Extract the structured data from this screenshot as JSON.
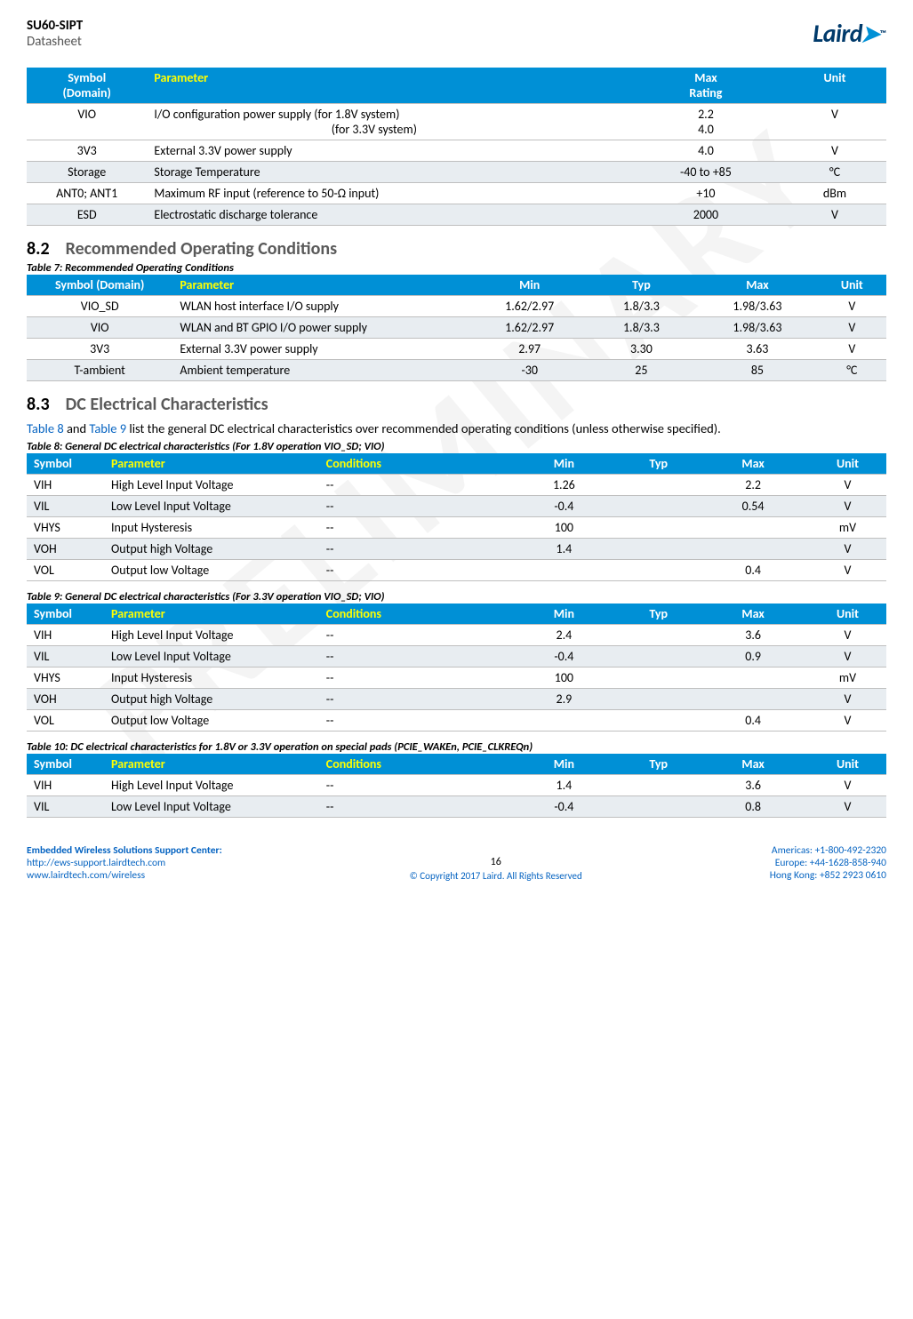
{
  "header": {
    "title": "SU60-SIPT",
    "subtitle": "Datasheet",
    "logo_text": "Laird"
  },
  "watermark": "PRELIMINARY",
  "table6": {
    "headers": [
      "Symbol (Domain)",
      "Parameter",
      "Max Rating",
      "Unit"
    ],
    "col_widths": [
      "14%",
      "56%",
      "18%",
      "12%"
    ],
    "rows": [
      {
        "cells": [
          "VIO",
          "I/O configuration power supply (for 1.8V system)\n                                                               (for 3.3V system)",
          "2.2\n4.0",
          "V"
        ],
        "alt": false
      },
      {
        "cells": [
          "3V3",
          "External 3.3V power supply",
          "4.0",
          "V"
        ],
        "alt": false
      },
      {
        "cells": [
          "Storage",
          "Storage Temperature",
          "-40 to +85",
          "°C"
        ],
        "alt": true
      },
      {
        "cells": [
          "ANT0; ANT1",
          "Maximum RF input (reference to 50-Ω input)",
          "+10",
          "dBm"
        ],
        "alt": false
      },
      {
        "cells": [
          "ESD",
          "Electrostatic discharge tolerance",
          "2000",
          "V"
        ],
        "alt": true
      }
    ]
  },
  "section82_num": "8.2",
  "section82_title": "Recommended Operating Conditions",
  "table7_caption": "Table 7: Recommended Operating Conditions",
  "table7": {
    "headers": [
      "Symbol (Domain)",
      "Parameter",
      "Min",
      "Typ",
      "Max",
      "Unit"
    ],
    "col_widths": [
      "17%",
      "35%",
      "13%",
      "13%",
      "14%",
      "8%"
    ],
    "rows": [
      {
        "cells": [
          "VIO_SD",
          "WLAN host interface I/O supply",
          "1.62/2.97",
          "1.8/3.3",
          "1.98/3.63",
          "V"
        ],
        "alt": false
      },
      {
        "cells": [
          "VIO",
          "WLAN and BT GPIO I/O power supply",
          "1.62/2.97",
          "1.8/3.3",
          "1.98/3.63",
          "V"
        ],
        "alt": true
      },
      {
        "cells": [
          "3V3",
          "External 3.3V power supply",
          "2.97",
          "3.30",
          "3.63",
          "V"
        ],
        "alt": false
      },
      {
        "cells": [
          "T-ambient",
          "Ambient temperature",
          "-30",
          "25",
          "85",
          "°C"
        ],
        "alt": true
      }
    ]
  },
  "section83_num": "8.3",
  "section83_title": "DC Electrical Characteristics",
  "section83_body_pre": "",
  "section83_link1": "Table 8",
  "section83_body_mid": " and ",
  "section83_link2": "Table 9",
  "section83_body_post": " list the general DC electrical characteristics over recommended operating conditions (unless otherwise specified).",
  "table8_caption": "Table 8: General DC electrical characteristics (For 1.8V operation VIO_SD; VIO)",
  "table_dc": {
    "headers": [
      "Symbol",
      "Parameter",
      "Conditions",
      "Min",
      "Typ",
      "Max",
      "Unit"
    ],
    "col_widths": [
      "9%",
      "25%",
      "22%",
      "13%",
      "9%",
      "13%",
      "9%"
    ]
  },
  "table8_rows": [
    {
      "cells": [
        "VIH",
        "High Level Input Voltage",
        "--",
        "1.26",
        "",
        "2.2",
        "V"
      ],
      "alt": false
    },
    {
      "cells": [
        "VIL",
        "Low Level Input Voltage",
        "--",
        "-0.4",
        "",
        "0.54",
        "V"
      ],
      "alt": true
    },
    {
      "cells": [
        "VHYS",
        "Input Hysteresis",
        "--",
        "100",
        "",
        "",
        "mV"
      ],
      "alt": false
    },
    {
      "cells": [
        "VOH",
        "Output high Voltage",
        "--",
        "1.4",
        "",
        "",
        "V"
      ],
      "alt": true
    },
    {
      "cells": [
        "VOL",
        "Output low Voltage",
        "--",
        "",
        "",
        "0.4",
        "V"
      ],
      "alt": false
    }
  ],
  "table9_caption": "Table 9: General DC electrical characteristics (For 3.3V operation VIO_SD; VIO)",
  "table9_rows": [
    {
      "cells": [
        "VIH",
        "High Level Input Voltage",
        "--",
        "2.4",
        "",
        "3.6",
        "V"
      ],
      "alt": false
    },
    {
      "cells": [
        "VIL",
        "Low Level Input Voltage",
        "--",
        "-0.4",
        "",
        "0.9",
        "V"
      ],
      "alt": true
    },
    {
      "cells": [
        "VHYS",
        "Input Hysteresis",
        "--",
        "100",
        "",
        "",
        "mV"
      ],
      "alt": false
    },
    {
      "cells": [
        "VOH",
        "Output high Voltage",
        "--",
        "2.9",
        "",
        "",
        "V"
      ],
      "alt": true
    },
    {
      "cells": [
        "VOL",
        "Output low Voltage",
        "--",
        "",
        "",
        "0.4",
        "V"
      ],
      "alt": false
    }
  ],
  "table10_caption": "Table 10: DC electrical characteristics for 1.8V or 3.3V operation on special pads (PCIE_WAKEn, PCIE_CLKREQn)",
  "table10_rows": [
    {
      "cells": [
        "VIH",
        "High Level Input Voltage",
        "--",
        "1.4",
        "",
        "3.6",
        "V"
      ],
      "alt": false
    },
    {
      "cells": [
        "VIL",
        "Low Level Input Voltage",
        "--",
        "-0.4",
        "",
        "0.8",
        "V"
      ],
      "alt": true
    }
  ],
  "footer": {
    "left_line1": "Embedded Wireless Solutions Support Center:",
    "left_line2": "http://ews-support.lairdtech.com",
    "left_line3": "www.lairdtech.com/wireless",
    "page_num": "16",
    "copyright": "© Copyright 2017 Laird. All Rights Reserved",
    "right_line1": "Americas: +1-800-492-2320",
    "right_line2": "Europe: +44-1628-858-940",
    "right_line3": "Hong Kong: +852 2923 0610"
  },
  "colors": {
    "header_bg": "#0090d6",
    "header_fg": "#ffffff",
    "yellow": "#ffff00",
    "alt_row": "#e8edf1",
    "link": "#0563c1",
    "heading": "#5a5a5a"
  }
}
